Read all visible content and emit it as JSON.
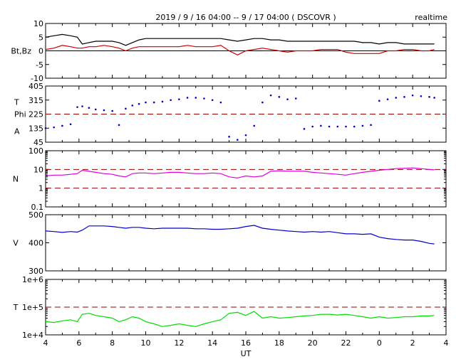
{
  "header": {
    "title": "2019 / 9 / 16  04:00 -- 9 / 17  04:00 ( DSCOVR )",
    "mode": "realtime"
  },
  "chart_data": [
    {
      "type": "line",
      "ylabel": "Bt,Bz",
      "ylim": [
        -10,
        10
      ],
      "yticks": [
        "10",
        "5",
        "0",
        "-5",
        "-10"
      ],
      "zero_line": 0,
      "series": [
        {
          "color": "#000000",
          "x": [
            4,
            4.5,
            5,
            5.5,
            5.9,
            6.2,
            6.6,
            7,
            7.5,
            8,
            8.4,
            8.8,
            9.2,
            9.6,
            10,
            10.5,
            11,
            11.5,
            12,
            12.5,
            13,
            13.5,
            14,
            14.5,
            15,
            15.5,
            16,
            16.5,
            17,
            17.5,
            18,
            18.5,
            19,
            19.5,
            20,
            20.5,
            21,
            21.5,
            22,
            22.5,
            23,
            23.5,
            24,
            24.5,
            25,
            25.5,
            26,
            26.5,
            27,
            27.3
          ],
          "y": [
            5,
            5.5,
            6,
            5.5,
            5,
            2.5,
            3,
            3.5,
            3.5,
            3.5,
            3,
            2,
            3,
            4,
            4.5,
            4.5,
            4.5,
            4.5,
            4.5,
            4.5,
            4.5,
            4.5,
            4.5,
            4.5,
            4,
            3.5,
            4,
            4.5,
            4.5,
            4,
            4,
            3.5,
            3.5,
            3.5,
            3.5,
            3.5,
            3.5,
            3.5,
            3.5,
            3.5,
            3,
            3,
            2.5,
            3,
            3,
            2.5,
            2.5,
            2.5,
            2.5,
            2.5
          ]
        },
        {
          "color": "#cc0000",
          "x": [
            4,
            4.5,
            5,
            5.5,
            5.9,
            6.2,
            6.6,
            7,
            7.5,
            8,
            8.4,
            8.8,
            9.2,
            9.6,
            10,
            10.5,
            11,
            11.5,
            12,
            12.5,
            13,
            13.5,
            14,
            14.5,
            15,
            15.5,
            16,
            16.5,
            17,
            17.5,
            18,
            18.5,
            19,
            19.5,
            20,
            20.5,
            21,
            21.5,
            22,
            22.5,
            23,
            23.5,
            24,
            24.5,
            25,
            25.5,
            26,
            26.5,
            27,
            27.3
          ],
          "y": [
            0.5,
            1,
            2,
            1.5,
            1,
            1,
            1.5,
            1.5,
            2,
            1.5,
            1,
            0,
            1,
            1.5,
            1.5,
            1.5,
            1.5,
            1.5,
            1.5,
            2,
            1.5,
            1.5,
            1.5,
            2,
            0,
            -1.5,
            0,
            0.5,
            1,
            0.5,
            0,
            -0.5,
            0,
            0,
            0,
            0.5,
            0.5,
            0.5,
            -0.5,
            -1,
            -1,
            -1,
            -1,
            0,
            0,
            0.5,
            0.5,
            0,
            0,
            0.5
          ]
        }
      ]
    },
    {
      "type": "scatter",
      "ylabel": [
        "T",
        "Phi",
        "A"
      ],
      "ylim": [
        45,
        405
      ],
      "yticks": [
        "405",
        "315",
        "225",
        "135",
        "45"
      ],
      "ref_line": 225,
      "series": [
        {
          "color": "#0000cc",
          "x": [
            4,
            4.5,
            5,
            5.5,
            5.9,
            6.2,
            6.6,
            7,
            7.5,
            8,
            8.4,
            8.8,
            9.2,
            9.6,
            10,
            10.5,
            11,
            11.5,
            12,
            12.5,
            13,
            13.5,
            14,
            14.5,
            15,
            15.5,
            16,
            16.5,
            17,
            17.5,
            18,
            18.5,
            19,
            19.5,
            20,
            20.5,
            21,
            21.5,
            22,
            22.5,
            23,
            23.5,
            24,
            24.5,
            25,
            25.5,
            26,
            26.5,
            27,
            27.3
          ],
          "y": [
            135,
            140,
            150,
            160,
            270,
            275,
            265,
            255,
            250,
            245,
            155,
            260,
            280,
            290,
            300,
            300,
            305,
            315,
            320,
            330,
            330,
            325,
            315,
            300,
            80,
            60,
            90,
            150,
            300,
            345,
            335,
            320,
            325,
            130,
            145,
            150,
            145,
            145,
            145,
            145,
            150,
            155,
            310,
            320,
            330,
            335,
            345,
            340,
            335,
            330
          ]
        }
      ]
    },
    {
      "type": "line",
      "ylabel": "N",
      "yscale": "log",
      "ylim": [
        0.1,
        100
      ],
      "yticks": [
        "100",
        "10",
        "1",
        "0.1"
      ],
      "ref_lines": [
        10,
        1
      ],
      "series": [
        {
          "color": "#dd00dd",
          "x": [
            4,
            4.5,
            5,
            5.5,
            5.9,
            6.2,
            6.6,
            7,
            7.5,
            8,
            8.4,
            8.8,
            9.2,
            9.6,
            10,
            10.5,
            11,
            11.5,
            12,
            12.5,
            13,
            13.5,
            14,
            14.5,
            15,
            15.5,
            16,
            16.5,
            17,
            17.5,
            18,
            18.5,
            19,
            19.5,
            20,
            20.5,
            21,
            21.5,
            22,
            22.5,
            23,
            23.5,
            24,
            24.5,
            25,
            25.5,
            26,
            26.5,
            27,
            27.3
          ],
          "y": [
            4.5,
            5,
            5,
            5.5,
            6,
            9,
            8,
            7,
            6,
            5.5,
            4.5,
            4,
            6,
            6.5,
            6.5,
            6,
            6.5,
            7,
            7,
            6.5,
            6,
            6,
            6.5,
            6,
            4,
            3.5,
            4.5,
            4,
            4.5,
            8,
            8.5,
            8,
            8,
            8,
            7,
            6.5,
            6,
            5.5,
            5,
            6,
            7,
            8,
            9,
            10,
            11,
            11.5,
            12,
            11,
            10,
            9.5
          ]
        }
      ]
    },
    {
      "type": "line",
      "ylabel": "V",
      "ylim": [
        300,
        500
      ],
      "yticks": [
        "500",
        "400",
        "300"
      ],
      "series": [
        {
          "color": "#0000cc",
          "x": [
            4,
            4.5,
            5,
            5.5,
            5.9,
            6.2,
            6.6,
            7,
            7.5,
            8,
            8.4,
            8.8,
            9.2,
            9.6,
            10,
            10.5,
            11,
            11.5,
            12,
            12.5,
            13,
            13.5,
            14,
            14.5,
            15,
            15.5,
            16,
            16.5,
            17,
            17.5,
            18,
            18.5,
            19,
            19.5,
            20,
            20.5,
            21,
            21.5,
            22,
            22.5,
            23,
            23.5,
            24,
            24.5,
            25,
            25.5,
            26,
            26.5,
            27,
            27.3
          ],
          "y": [
            442,
            440,
            437,
            440,
            438,
            445,
            460,
            460,
            460,
            458,
            455,
            452,
            455,
            455,
            452,
            450,
            452,
            452,
            452,
            452,
            450,
            450,
            448,
            448,
            450,
            452,
            458,
            462,
            452,
            448,
            445,
            442,
            440,
            438,
            440,
            438,
            440,
            436,
            432,
            432,
            430,
            432,
            420,
            415,
            412,
            410,
            410,
            405,
            398,
            396
          ]
        }
      ]
    },
    {
      "type": "line",
      "ylabel": "T",
      "xlabel": "UT",
      "yscale": "log",
      "ylim": [
        10000,
        1000000
      ],
      "yticks": [
        "1e+6",
        "1e+5",
        "1e+4"
      ],
      "ref_line": 100000,
      "xlim": [
        4,
        28
      ],
      "xticks": [
        "4",
        "6",
        "8",
        "10",
        "12",
        "14",
        "16",
        "18",
        "20",
        "22",
        "0",
        "2",
        "4"
      ],
      "series": [
        {
          "color": "#00dd00",
          "x": [
            4,
            4.5,
            5,
            5.5,
            5.9,
            6.2,
            6.6,
            7,
            7.5,
            8,
            8.4,
            8.8,
            9.2,
            9.6,
            10,
            10.5,
            11,
            11.5,
            12,
            12.5,
            13,
            13.5,
            14,
            14.5,
            15,
            15.5,
            16,
            16.5,
            17,
            17.5,
            18,
            18.5,
            19,
            19.5,
            20,
            20.5,
            21,
            21.5,
            22,
            22.5,
            23,
            23.5,
            24,
            24.5,
            25,
            25.5,
            26,
            26.5,
            27,
            27.3
          ],
          "y": [
            30000,
            28000,
            32000,
            35000,
            30000,
            55000,
            60000,
            50000,
            45000,
            40000,
            30000,
            35000,
            45000,
            40000,
            30000,
            25000,
            20000,
            22000,
            25000,
            22000,
            20000,
            25000,
            30000,
            35000,
            60000,
            65000,
            50000,
            70000,
            40000,
            45000,
            40000,
            42000,
            45000,
            48000,
            50000,
            55000,
            55000,
            52000,
            55000,
            50000,
            45000,
            40000,
            45000,
            40000,
            42000,
            45000,
            45000,
            48000,
            48000,
            50000
          ]
        }
      ]
    }
  ]
}
